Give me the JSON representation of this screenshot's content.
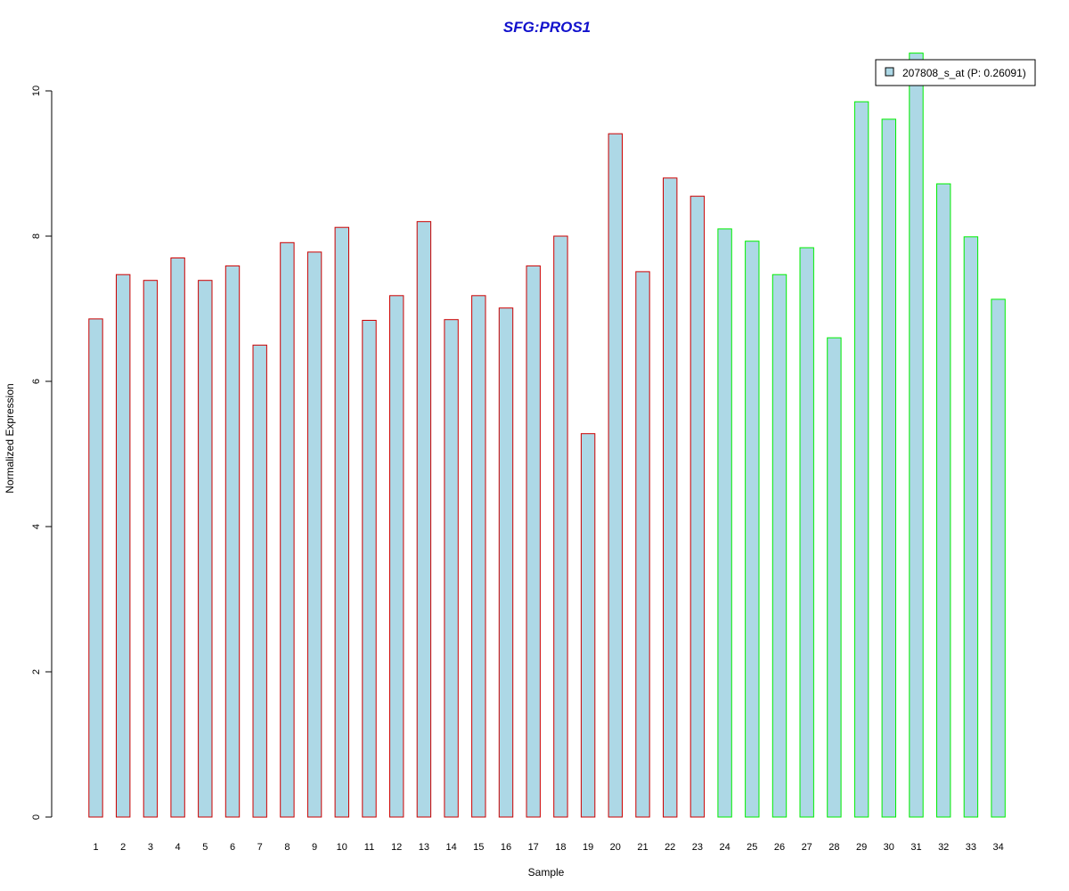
{
  "chart_data": {
    "type": "bar",
    "title": "SFG:PROS1",
    "xlabel": "Sample",
    "ylabel": "Normalized Expression",
    "ylim": [
      0,
      10
    ],
    "yticks": [
      0,
      2,
      4,
      6,
      8,
      10
    ],
    "categories": [
      "1",
      "2",
      "3",
      "4",
      "5",
      "6",
      "7",
      "8",
      "9",
      "10",
      "11",
      "12",
      "13",
      "14",
      "15",
      "16",
      "17",
      "18",
      "19",
      "20",
      "21",
      "22",
      "23",
      "24",
      "25",
      "26",
      "27",
      "28",
      "29",
      "30",
      "31",
      "32",
      "33",
      "34"
    ],
    "series": [
      {
        "name": "207808_s_at (P: 0.26091)",
        "values": [
          6.86,
          7.47,
          7.39,
          7.7,
          7.39,
          7.59,
          6.5,
          7.91,
          7.78,
          8.12,
          6.84,
          7.18,
          8.2,
          6.85,
          7.18,
          7.01,
          7.59,
          8.0,
          5.28,
          9.41,
          7.51,
          8.8,
          8.55,
          8.1,
          7.93,
          7.47,
          7.84,
          6.6,
          9.85,
          9.61,
          10.52,
          8.72,
          7.99,
          7.13
        ]
      }
    ],
    "groups": [
      {
        "from": 1,
        "to": 23,
        "border_color": "#cc0000"
      },
      {
        "from": 24,
        "to": 34,
        "border_color": "#00ee00"
      }
    ],
    "bar_fill": "#add8e6",
    "title_color": "#1010cc",
    "grid": false,
    "legend_position": "top-right"
  }
}
